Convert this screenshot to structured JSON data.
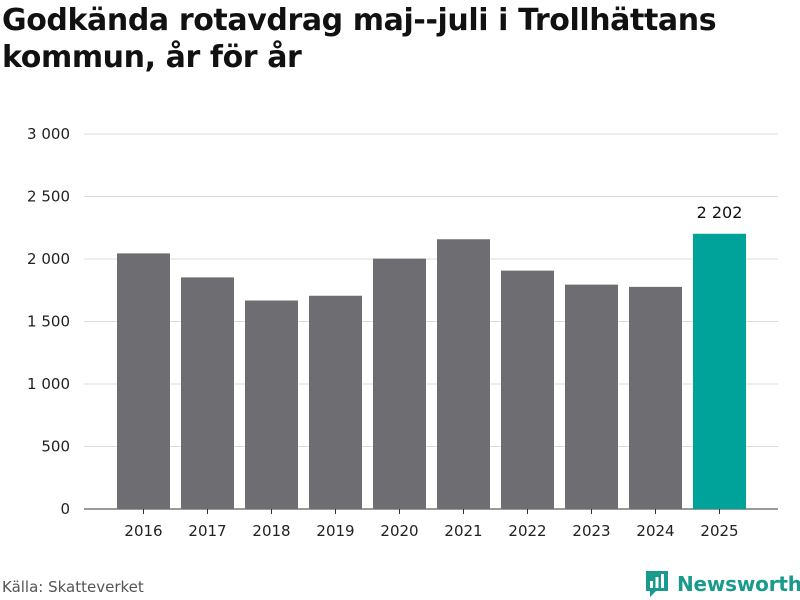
{
  "header": {
    "title": "Godkända rotavdrag maj--juli i Trollhättans kommun, år för år"
  },
  "footer": {
    "source": "Källa: Skatteverket",
    "brand": "Newsworthy",
    "brand_icon": "newsworthy-logo-icon"
  },
  "colors": {
    "bar": "#6e6d72",
    "highlight": "#00a39a",
    "grid": "#dcdcdc",
    "brand": "#1a9a8c"
  },
  "chart_data": {
    "type": "bar",
    "categories": [
      "2016",
      "2017",
      "2018",
      "2019",
      "2020",
      "2021",
      "2022",
      "2023",
      "2024",
      "2025"
    ],
    "values": [
      2045,
      1853,
      1668,
      1706,
      2003,
      2158,
      1907,
      1795,
      1777,
      2202
    ],
    "highlight_index": 9,
    "data_labels": [
      {
        "index": 9,
        "text": "2 202"
      }
    ],
    "ylim": [
      0,
      3000
    ],
    "yticks": [
      0,
      500,
      1000,
      1500,
      2000,
      2500,
      3000
    ],
    "ytick_labels": [
      "0",
      "500",
      "1 000",
      "1 500",
      "2 000",
      "2 500",
      "3 000"
    ],
    "grid": true,
    "legend": "none",
    "xlabel": "",
    "ylabel": ""
  }
}
